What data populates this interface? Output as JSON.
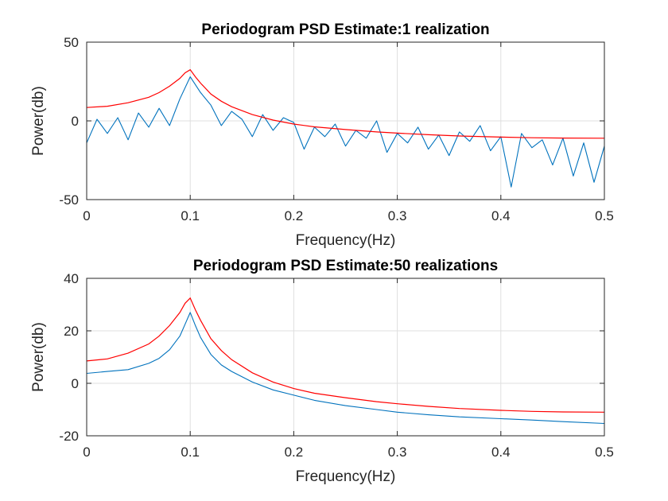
{
  "chart_data": [
    {
      "type": "line",
      "title": "Periodogram PSD Estimate:1 realization",
      "xlabel": "Frequency(Hz)",
      "ylabel": "Power(db)",
      "xlim": [
        0,
        0.5
      ],
      "ylim": [
        -50,
        50
      ],
      "xticks": [
        "0",
        "0.1",
        "0.2",
        "0.3",
        "0.4",
        "0.5"
      ],
      "yticks": [
        "-50",
        "0",
        "50"
      ],
      "xtick_values": [
        0,
        0.1,
        0.2,
        0.3,
        0.4,
        0.5
      ],
      "ytick_values": [
        -50,
        0,
        50
      ],
      "grid": true,
      "series": [
        {
          "color": "#0072bd",
          "style": "noisy periodogram",
          "x": [
            0,
            0.01,
            0.02,
            0.03,
            0.04,
            0.05,
            0.06,
            0.07,
            0.08,
            0.09,
            0.1,
            0.11,
            0.12,
            0.13,
            0.14,
            0.15,
            0.16,
            0.17,
            0.18,
            0.19,
            0.2,
            0.21,
            0.22,
            0.23,
            0.24,
            0.25,
            0.26,
            0.27,
            0.28,
            0.29,
            0.3,
            0.31,
            0.32,
            0.33,
            0.34,
            0.35,
            0.36,
            0.37,
            0.38,
            0.39,
            0.4,
            0.41,
            0.42,
            0.43,
            0.44,
            0.45,
            0.46,
            0.47,
            0.48,
            0.49,
            0.5
          ],
          "y": [
            -14,
            1,
            -8,
            2,
            -12,
            5,
            -4,
            8,
            -3,
            14,
            28,
            18,
            10,
            -3,
            6,
            1,
            -10,
            4,
            -6,
            2,
            -1,
            -18,
            -4,
            -10,
            -2,
            -16,
            -6,
            -11,
            0,
            -20,
            -8,
            -14,
            -4,
            -18,
            -9,
            -22,
            -7,
            -13,
            -3,
            -19,
            -10,
            -42,
            -8,
            -17,
            -12,
            -28,
            -11,
            -35,
            -14,
            -39,
            -16
          ]
        },
        {
          "color": "#ff0000",
          "style": "theoretical",
          "x": [
            0,
            0.02,
            0.04,
            0.06,
            0.07,
            0.08,
            0.09,
            0.095,
            0.1,
            0.105,
            0.11,
            0.12,
            0.13,
            0.14,
            0.16,
            0.18,
            0.2,
            0.22,
            0.25,
            0.28,
            0.3,
            0.33,
            0.36,
            0.4,
            0.43,
            0.46,
            0.5
          ],
          "y": [
            8.5,
            9.3,
            11.5,
            15,
            18,
            22,
            27,
            30.5,
            32.5,
            28,
            24,
            17,
            12.5,
            9,
            4,
            0.5,
            -2,
            -3.8,
            -5.5,
            -7,
            -7.8,
            -8.8,
            -9.6,
            -10.3,
            -10.7,
            -10.9,
            -11
          ]
        }
      ]
    },
    {
      "type": "line",
      "title": "Periodogram PSD Estimate:50 realizations",
      "xlabel": "Frequency(Hz)",
      "ylabel": "Power(db)",
      "xlim": [
        0,
        0.5
      ],
      "ylim": [
        -20,
        40
      ],
      "xticks": [
        "0",
        "0.1",
        "0.2",
        "0.3",
        "0.4",
        "0.5"
      ],
      "yticks": [
        "-20",
        "0",
        "20",
        "40"
      ],
      "xtick_values": [
        0,
        0.1,
        0.2,
        0.3,
        0.4,
        0.5
      ],
      "ytick_values": [
        -20,
        0,
        20,
        40
      ],
      "grid": true,
      "series": [
        {
          "color": "#0072bd",
          "style": "averaged periodogram",
          "x": [
            0,
            0.02,
            0.04,
            0.06,
            0.07,
            0.08,
            0.09,
            0.095,
            0.1,
            0.105,
            0.11,
            0.12,
            0.13,
            0.14,
            0.16,
            0.18,
            0.2,
            0.22,
            0.25,
            0.28,
            0.3,
            0.33,
            0.36,
            0.4,
            0.43,
            0.46,
            0.5
          ],
          "y": [
            3.8,
            4.5,
            5.2,
            7.6,
            9.5,
            12.8,
            18,
            22.5,
            27,
            22,
            17.5,
            11,
            7,
            4.5,
            0.5,
            -2.5,
            -4.5,
            -6.5,
            -8.5,
            -10,
            -11,
            -12,
            -12.8,
            -13.5,
            -14,
            -14.6,
            -15.3
          ]
        },
        {
          "color": "#ff0000",
          "style": "theoretical",
          "x": [
            0,
            0.02,
            0.04,
            0.06,
            0.07,
            0.08,
            0.09,
            0.095,
            0.1,
            0.105,
            0.11,
            0.12,
            0.13,
            0.14,
            0.16,
            0.18,
            0.2,
            0.22,
            0.25,
            0.28,
            0.3,
            0.33,
            0.36,
            0.4,
            0.43,
            0.46,
            0.5
          ],
          "y": [
            8.5,
            9.3,
            11.5,
            15,
            18,
            22,
            27,
            30.5,
            32.5,
            28,
            24,
            17,
            12.5,
            9,
            4,
            0.5,
            -2,
            -3.8,
            -5.5,
            -7,
            -7.8,
            -8.8,
            -9.6,
            -10.3,
            -10.7,
            -10.9,
            -11
          ]
        }
      ]
    }
  ]
}
